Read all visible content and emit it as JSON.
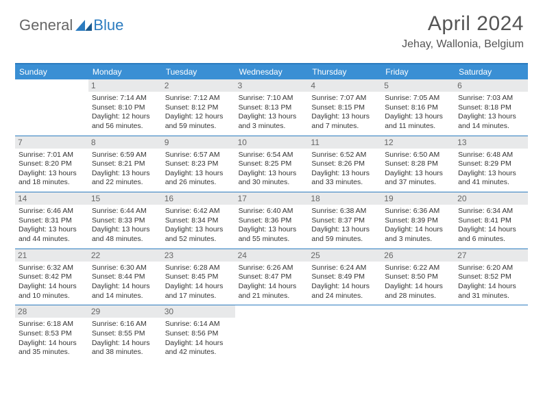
{
  "logo": {
    "general": "General",
    "blue": "Blue"
  },
  "title": "April 2024",
  "location": "Jehay, Wallonia, Belgium",
  "dayhead_bg": "#3a8fd4",
  "border_color": "#2b7bbf",
  "daynum_bg": "#e8e9ea",
  "dayheads": [
    "Sunday",
    "Monday",
    "Tuesday",
    "Wednesday",
    "Thursday",
    "Friday",
    "Saturday"
  ],
  "weeks": [
    [
      null,
      {
        "n": "1",
        "sr": "Sunrise: 7:14 AM",
        "ss": "Sunset: 8:10 PM",
        "d1": "Daylight: 12 hours",
        "d2": "and 56 minutes."
      },
      {
        "n": "2",
        "sr": "Sunrise: 7:12 AM",
        "ss": "Sunset: 8:12 PM",
        "d1": "Daylight: 12 hours",
        "d2": "and 59 minutes."
      },
      {
        "n": "3",
        "sr": "Sunrise: 7:10 AM",
        "ss": "Sunset: 8:13 PM",
        "d1": "Daylight: 13 hours",
        "d2": "and 3 minutes."
      },
      {
        "n": "4",
        "sr": "Sunrise: 7:07 AM",
        "ss": "Sunset: 8:15 PM",
        "d1": "Daylight: 13 hours",
        "d2": "and 7 minutes."
      },
      {
        "n": "5",
        "sr": "Sunrise: 7:05 AM",
        "ss": "Sunset: 8:16 PM",
        "d1": "Daylight: 13 hours",
        "d2": "and 11 minutes."
      },
      {
        "n": "6",
        "sr": "Sunrise: 7:03 AM",
        "ss": "Sunset: 8:18 PM",
        "d1": "Daylight: 13 hours",
        "d2": "and 14 minutes."
      }
    ],
    [
      {
        "n": "7",
        "sr": "Sunrise: 7:01 AM",
        "ss": "Sunset: 8:20 PM",
        "d1": "Daylight: 13 hours",
        "d2": "and 18 minutes."
      },
      {
        "n": "8",
        "sr": "Sunrise: 6:59 AM",
        "ss": "Sunset: 8:21 PM",
        "d1": "Daylight: 13 hours",
        "d2": "and 22 minutes."
      },
      {
        "n": "9",
        "sr": "Sunrise: 6:57 AM",
        "ss": "Sunset: 8:23 PM",
        "d1": "Daylight: 13 hours",
        "d2": "and 26 minutes."
      },
      {
        "n": "10",
        "sr": "Sunrise: 6:54 AM",
        "ss": "Sunset: 8:25 PM",
        "d1": "Daylight: 13 hours",
        "d2": "and 30 minutes."
      },
      {
        "n": "11",
        "sr": "Sunrise: 6:52 AM",
        "ss": "Sunset: 8:26 PM",
        "d1": "Daylight: 13 hours",
        "d2": "and 33 minutes."
      },
      {
        "n": "12",
        "sr": "Sunrise: 6:50 AM",
        "ss": "Sunset: 8:28 PM",
        "d1": "Daylight: 13 hours",
        "d2": "and 37 minutes."
      },
      {
        "n": "13",
        "sr": "Sunrise: 6:48 AM",
        "ss": "Sunset: 8:29 PM",
        "d1": "Daylight: 13 hours",
        "d2": "and 41 minutes."
      }
    ],
    [
      {
        "n": "14",
        "sr": "Sunrise: 6:46 AM",
        "ss": "Sunset: 8:31 PM",
        "d1": "Daylight: 13 hours",
        "d2": "and 44 minutes."
      },
      {
        "n": "15",
        "sr": "Sunrise: 6:44 AM",
        "ss": "Sunset: 8:33 PM",
        "d1": "Daylight: 13 hours",
        "d2": "and 48 minutes."
      },
      {
        "n": "16",
        "sr": "Sunrise: 6:42 AM",
        "ss": "Sunset: 8:34 PM",
        "d1": "Daylight: 13 hours",
        "d2": "and 52 minutes."
      },
      {
        "n": "17",
        "sr": "Sunrise: 6:40 AM",
        "ss": "Sunset: 8:36 PM",
        "d1": "Daylight: 13 hours",
        "d2": "and 55 minutes."
      },
      {
        "n": "18",
        "sr": "Sunrise: 6:38 AM",
        "ss": "Sunset: 8:37 PM",
        "d1": "Daylight: 13 hours",
        "d2": "and 59 minutes."
      },
      {
        "n": "19",
        "sr": "Sunrise: 6:36 AM",
        "ss": "Sunset: 8:39 PM",
        "d1": "Daylight: 14 hours",
        "d2": "and 3 minutes."
      },
      {
        "n": "20",
        "sr": "Sunrise: 6:34 AM",
        "ss": "Sunset: 8:41 PM",
        "d1": "Daylight: 14 hours",
        "d2": "and 6 minutes."
      }
    ],
    [
      {
        "n": "21",
        "sr": "Sunrise: 6:32 AM",
        "ss": "Sunset: 8:42 PM",
        "d1": "Daylight: 14 hours",
        "d2": "and 10 minutes."
      },
      {
        "n": "22",
        "sr": "Sunrise: 6:30 AM",
        "ss": "Sunset: 8:44 PM",
        "d1": "Daylight: 14 hours",
        "d2": "and 14 minutes."
      },
      {
        "n": "23",
        "sr": "Sunrise: 6:28 AM",
        "ss": "Sunset: 8:45 PM",
        "d1": "Daylight: 14 hours",
        "d2": "and 17 minutes."
      },
      {
        "n": "24",
        "sr": "Sunrise: 6:26 AM",
        "ss": "Sunset: 8:47 PM",
        "d1": "Daylight: 14 hours",
        "d2": "and 21 minutes."
      },
      {
        "n": "25",
        "sr": "Sunrise: 6:24 AM",
        "ss": "Sunset: 8:49 PM",
        "d1": "Daylight: 14 hours",
        "d2": "and 24 minutes."
      },
      {
        "n": "26",
        "sr": "Sunrise: 6:22 AM",
        "ss": "Sunset: 8:50 PM",
        "d1": "Daylight: 14 hours",
        "d2": "and 28 minutes."
      },
      {
        "n": "27",
        "sr": "Sunrise: 6:20 AM",
        "ss": "Sunset: 8:52 PM",
        "d1": "Daylight: 14 hours",
        "d2": "and 31 minutes."
      }
    ],
    [
      {
        "n": "28",
        "sr": "Sunrise: 6:18 AM",
        "ss": "Sunset: 8:53 PM",
        "d1": "Daylight: 14 hours",
        "d2": "and 35 minutes."
      },
      {
        "n": "29",
        "sr": "Sunrise: 6:16 AM",
        "ss": "Sunset: 8:55 PM",
        "d1": "Daylight: 14 hours",
        "d2": "and 38 minutes."
      },
      {
        "n": "30",
        "sr": "Sunrise: 6:14 AM",
        "ss": "Sunset: 8:56 PM",
        "d1": "Daylight: 14 hours",
        "d2": "and 42 minutes."
      },
      null,
      null,
      null,
      null
    ]
  ]
}
